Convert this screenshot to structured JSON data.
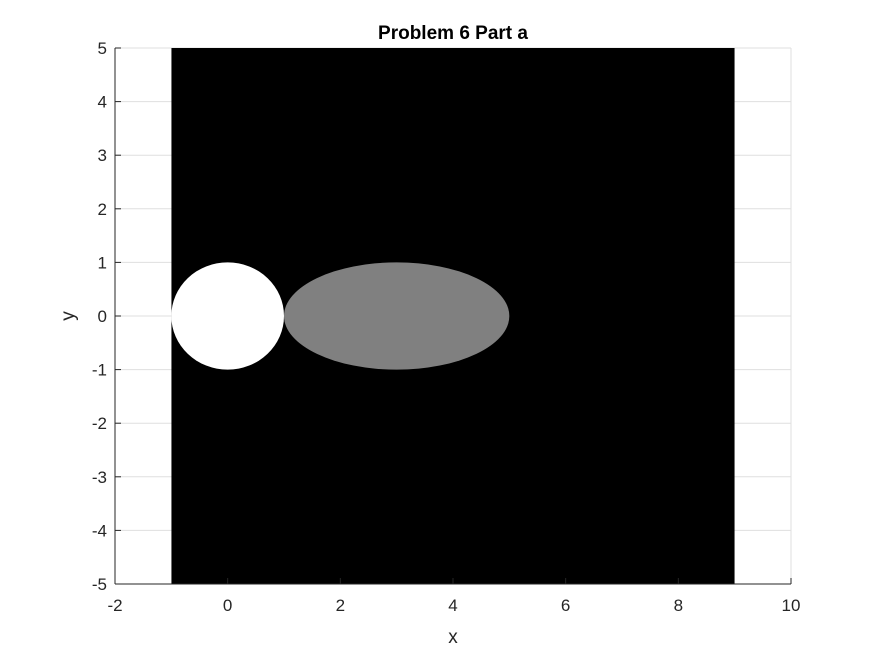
{
  "chart_data": {
    "type": "heatmap",
    "title": "Problem 6 Part a",
    "xlabel": "x",
    "ylabel": "y",
    "xlim": [
      -2,
      10
    ],
    "ylim": [
      -5,
      5
    ],
    "x_ticks": [
      -2,
      0,
      2,
      4,
      6,
      8,
      10
    ],
    "y_ticks": [
      -5,
      -4,
      -3,
      -2,
      -1,
      0,
      1,
      2,
      3,
      4,
      5
    ],
    "x_tick_labels": [
      "-2",
      "0",
      "2",
      "4",
      "6",
      "8",
      "10"
    ],
    "y_tick_labels": [
      "-5",
      "-4",
      "-3",
      "-2",
      "-1",
      "0",
      "1",
      "2",
      "3",
      "4",
      "5"
    ],
    "grid": true,
    "colormap": "gray",
    "image_extent": {
      "x": [
        -1,
        9
      ],
      "y": [
        -5,
        5
      ]
    },
    "regions": [
      {
        "name": "background",
        "value": 0,
        "color": "#000000"
      },
      {
        "name": "circle",
        "shape": "disk",
        "center": [
          0,
          0
        ],
        "radius": 1,
        "value": 1,
        "color": "#ffffff"
      },
      {
        "name": "ellipse",
        "shape": "ellipse",
        "center": [
          3,
          0
        ],
        "semi_axes": [
          2,
          1
        ],
        "value": 0.5,
        "color": "#808080"
      }
    ]
  }
}
